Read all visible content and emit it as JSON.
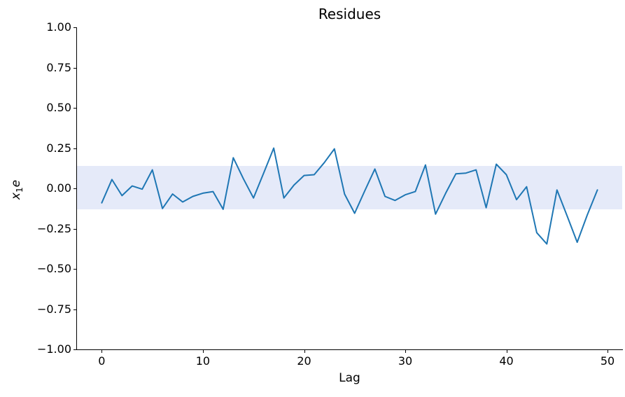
{
  "title": "Residues",
  "chart_data": {
    "type": "line",
    "title": "Residues",
    "xlabel": "Lag",
    "ylabel": "x1e",
    "ylabel_parts": {
      "base": "x",
      "sub": "1",
      "suffix": "e"
    },
    "x": [
      0,
      1,
      2,
      3,
      4,
      5,
      6,
      7,
      8,
      9,
      10,
      11,
      12,
      13,
      14,
      15,
      16,
      17,
      18,
      19,
      20,
      21,
      22,
      23,
      24,
      25,
      26,
      27,
      28,
      29,
      30,
      31,
      32,
      33,
      34,
      35,
      36,
      37,
      38,
      39,
      40,
      41,
      42,
      43,
      44,
      45,
      46,
      47,
      48,
      49
    ],
    "values": [
      -0.09,
      0.055,
      -0.045,
      0.015,
      -0.005,
      0.115,
      -0.125,
      -0.035,
      -0.085,
      -0.05,
      -0.03,
      -0.02,
      -0.13,
      0.19,
      0.06,
      -0.06,
      0.095,
      0.25,
      -0.06,
      0.02,
      0.08,
      0.085,
      0.16,
      0.245,
      -0.035,
      -0.155,
      -0.015,
      0.12,
      -0.05,
      -0.075,
      -0.04,
      -0.02,
      0.145,
      -0.16,
      -0.03,
      0.09,
      0.095,
      0.115,
      -0.12,
      0.15,
      0.085,
      -0.07,
      0.01,
      -0.275,
      -0.345,
      -0.01,
      -0.17,
      -0.335,
      -0.165,
      -0.01
    ],
    "xlim": [
      -2.45,
      51.45
    ],
    "ylim": [
      -1.0,
      1.0
    ],
    "xticks": [
      0,
      10,
      20,
      30,
      40,
      50
    ],
    "xtick_labels": [
      "0",
      "10",
      "20",
      "30",
      "40",
      "50"
    ],
    "yticks": [
      1.0,
      0.75,
      0.5,
      0.25,
      0.0,
      -0.25,
      -0.5,
      -0.75,
      -1.0
    ],
    "ytick_labels": [
      "1.00",
      "0.75",
      "0.50",
      "0.25",
      "0.00",
      "−0.25",
      "−0.50",
      "−0.75",
      "−1.00"
    ],
    "grid": false,
    "legend": null,
    "line_color": "#1f77b4",
    "band": {
      "low": -0.131,
      "high": 0.139,
      "color": "#e5eaf9"
    }
  }
}
